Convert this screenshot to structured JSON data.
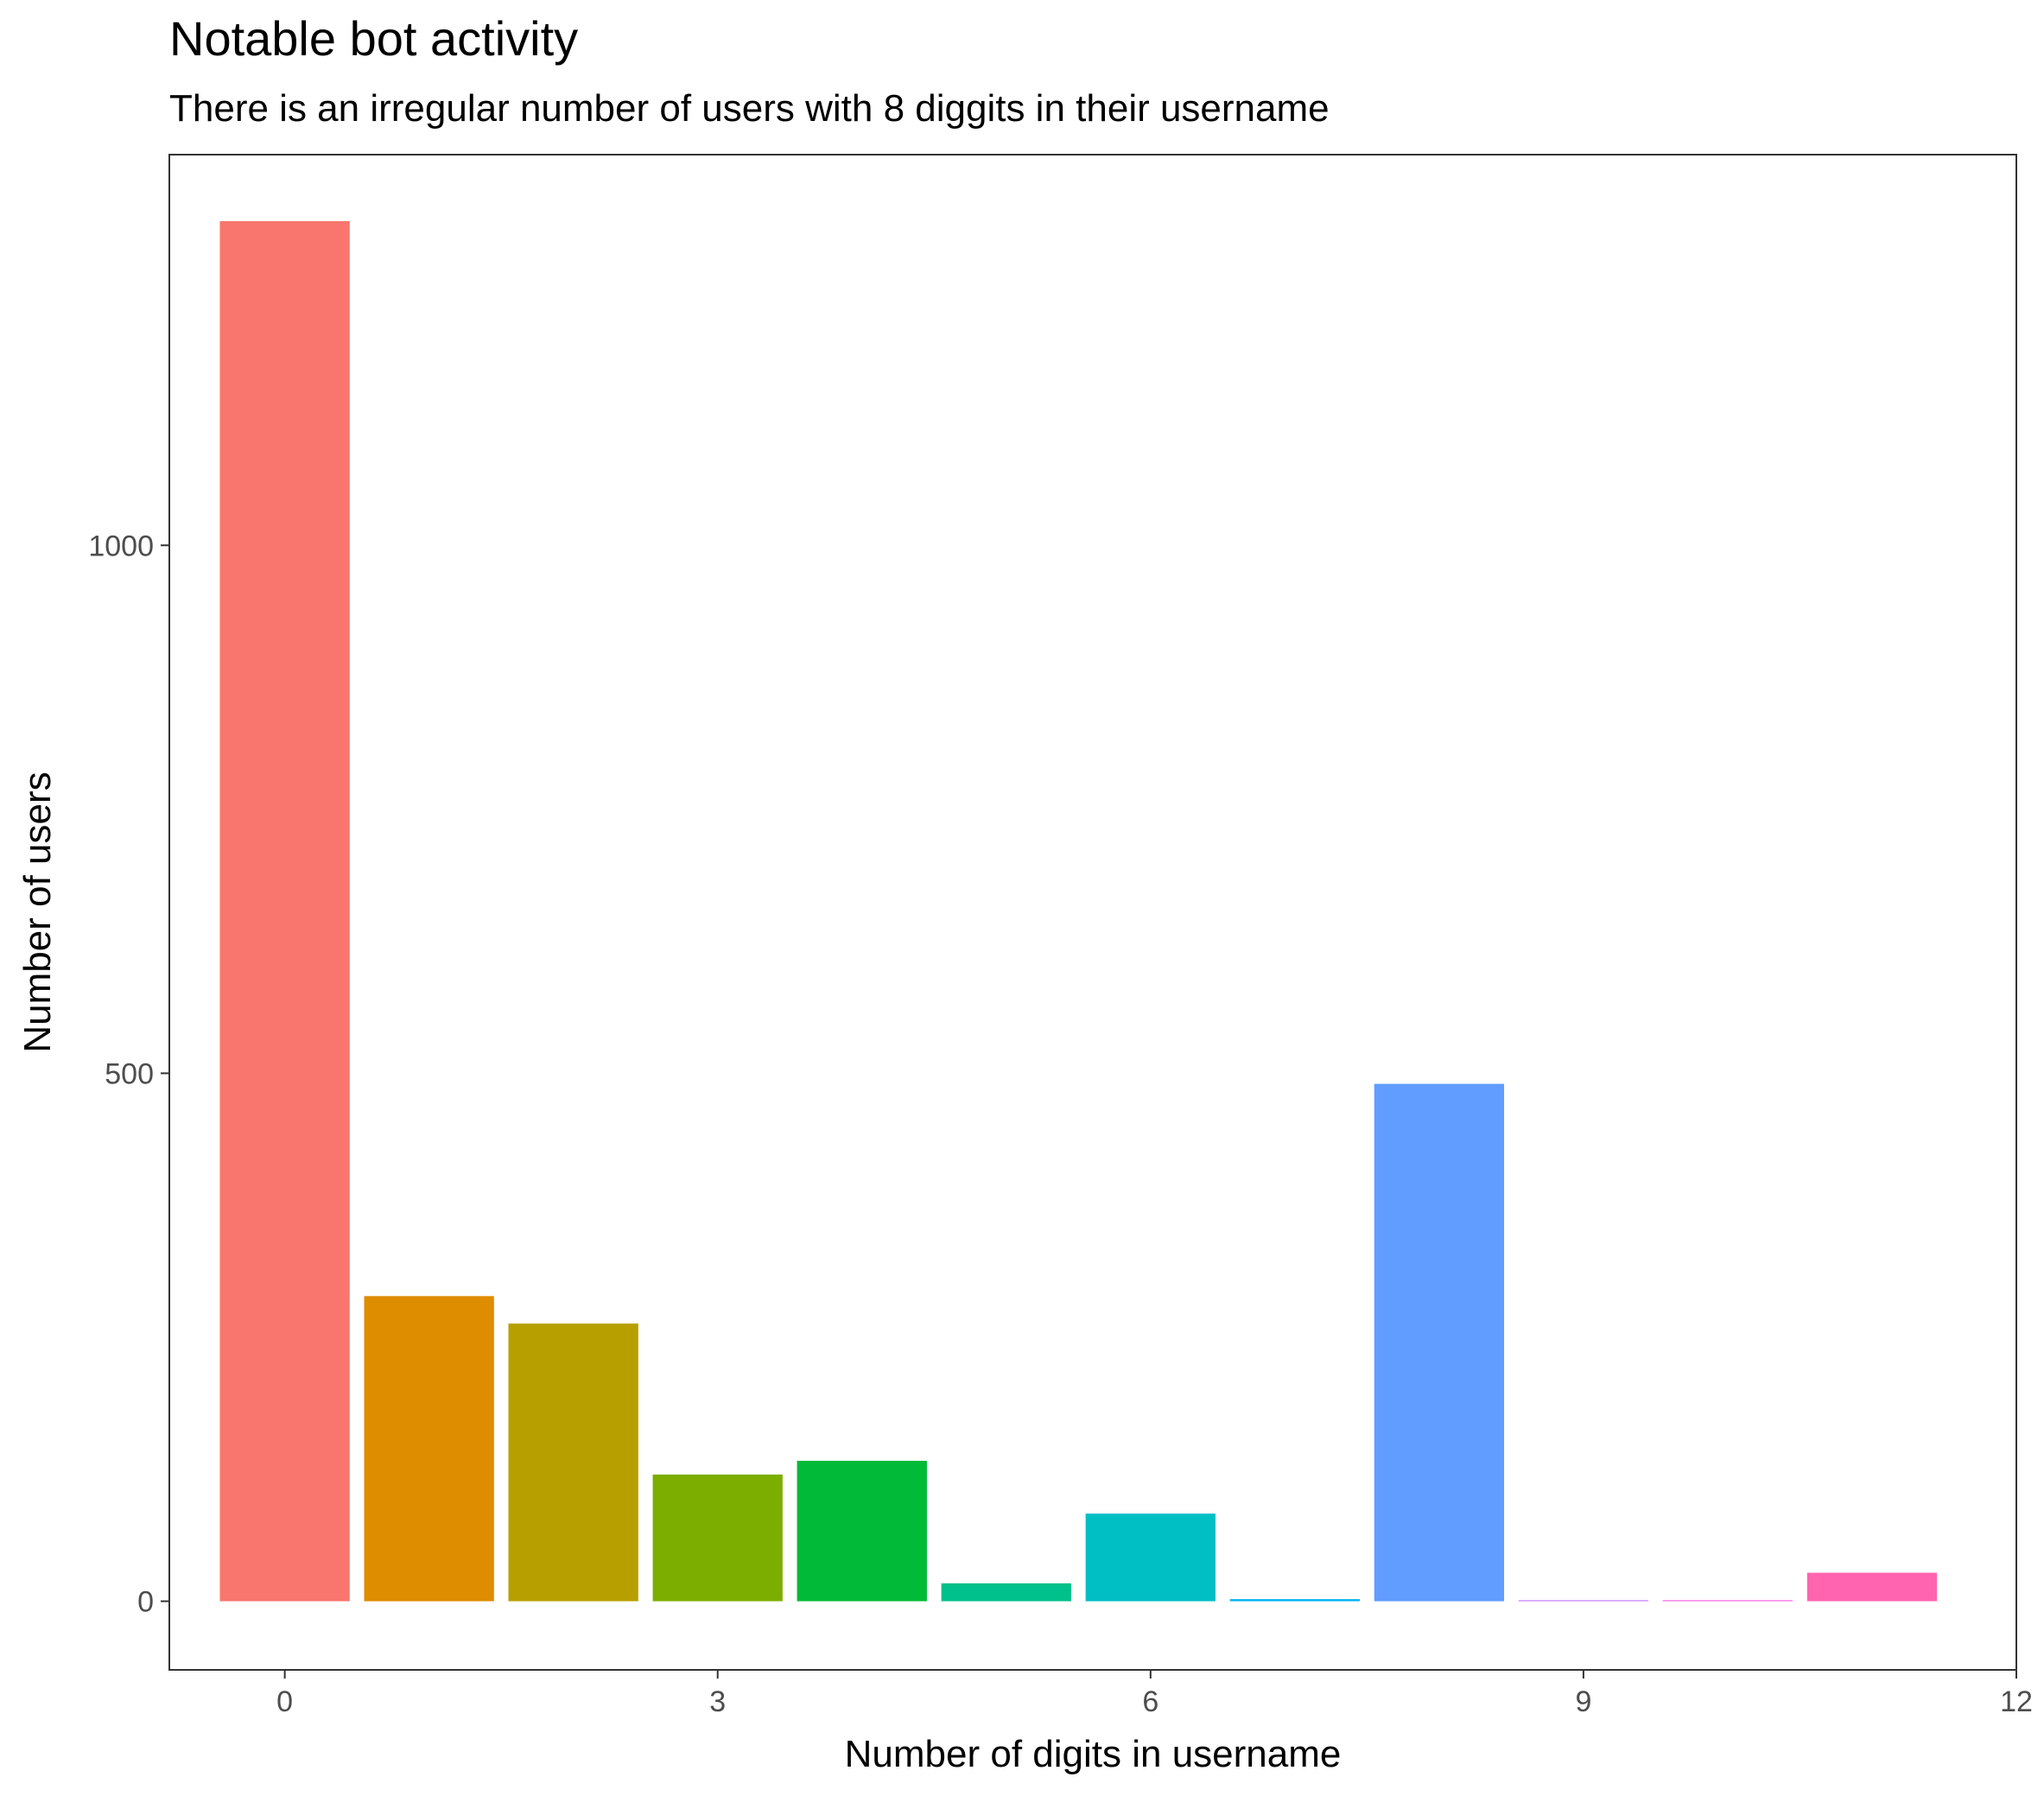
{
  "chart_data": {
    "type": "bar",
    "title": "Notable bot activity",
    "subtitle": "There is an irregular number of users with 8 diggits in their username",
    "xlabel": "Number of digits in username",
    "ylabel": "Number of users",
    "x": [
      0,
      1,
      2,
      3,
      4,
      5,
      6,
      7,
      8,
      9,
      10,
      11
    ],
    "values": [
      1307,
      289,
      263,
      120,
      133,
      17,
      83,
      2,
      490,
      1,
      1,
      27
    ],
    "colors": [
      "#F8766D",
      "#DE8C00",
      "#B79F00",
      "#7CAE00",
      "#00BA38",
      "#00C08B",
      "#00BFC4",
      "#00B4F0",
      "#619CFF",
      "#C77CFF",
      "#F564E3",
      "#FF64B0"
    ],
    "xlim": [
      -0.8,
      12
    ],
    "ylim": [
      -65,
      1370
    ],
    "xticks": [
      0,
      3,
      6,
      9,
      12
    ],
    "yticks": [
      0,
      500,
      1000
    ],
    "grid": false,
    "legend": "none"
  }
}
